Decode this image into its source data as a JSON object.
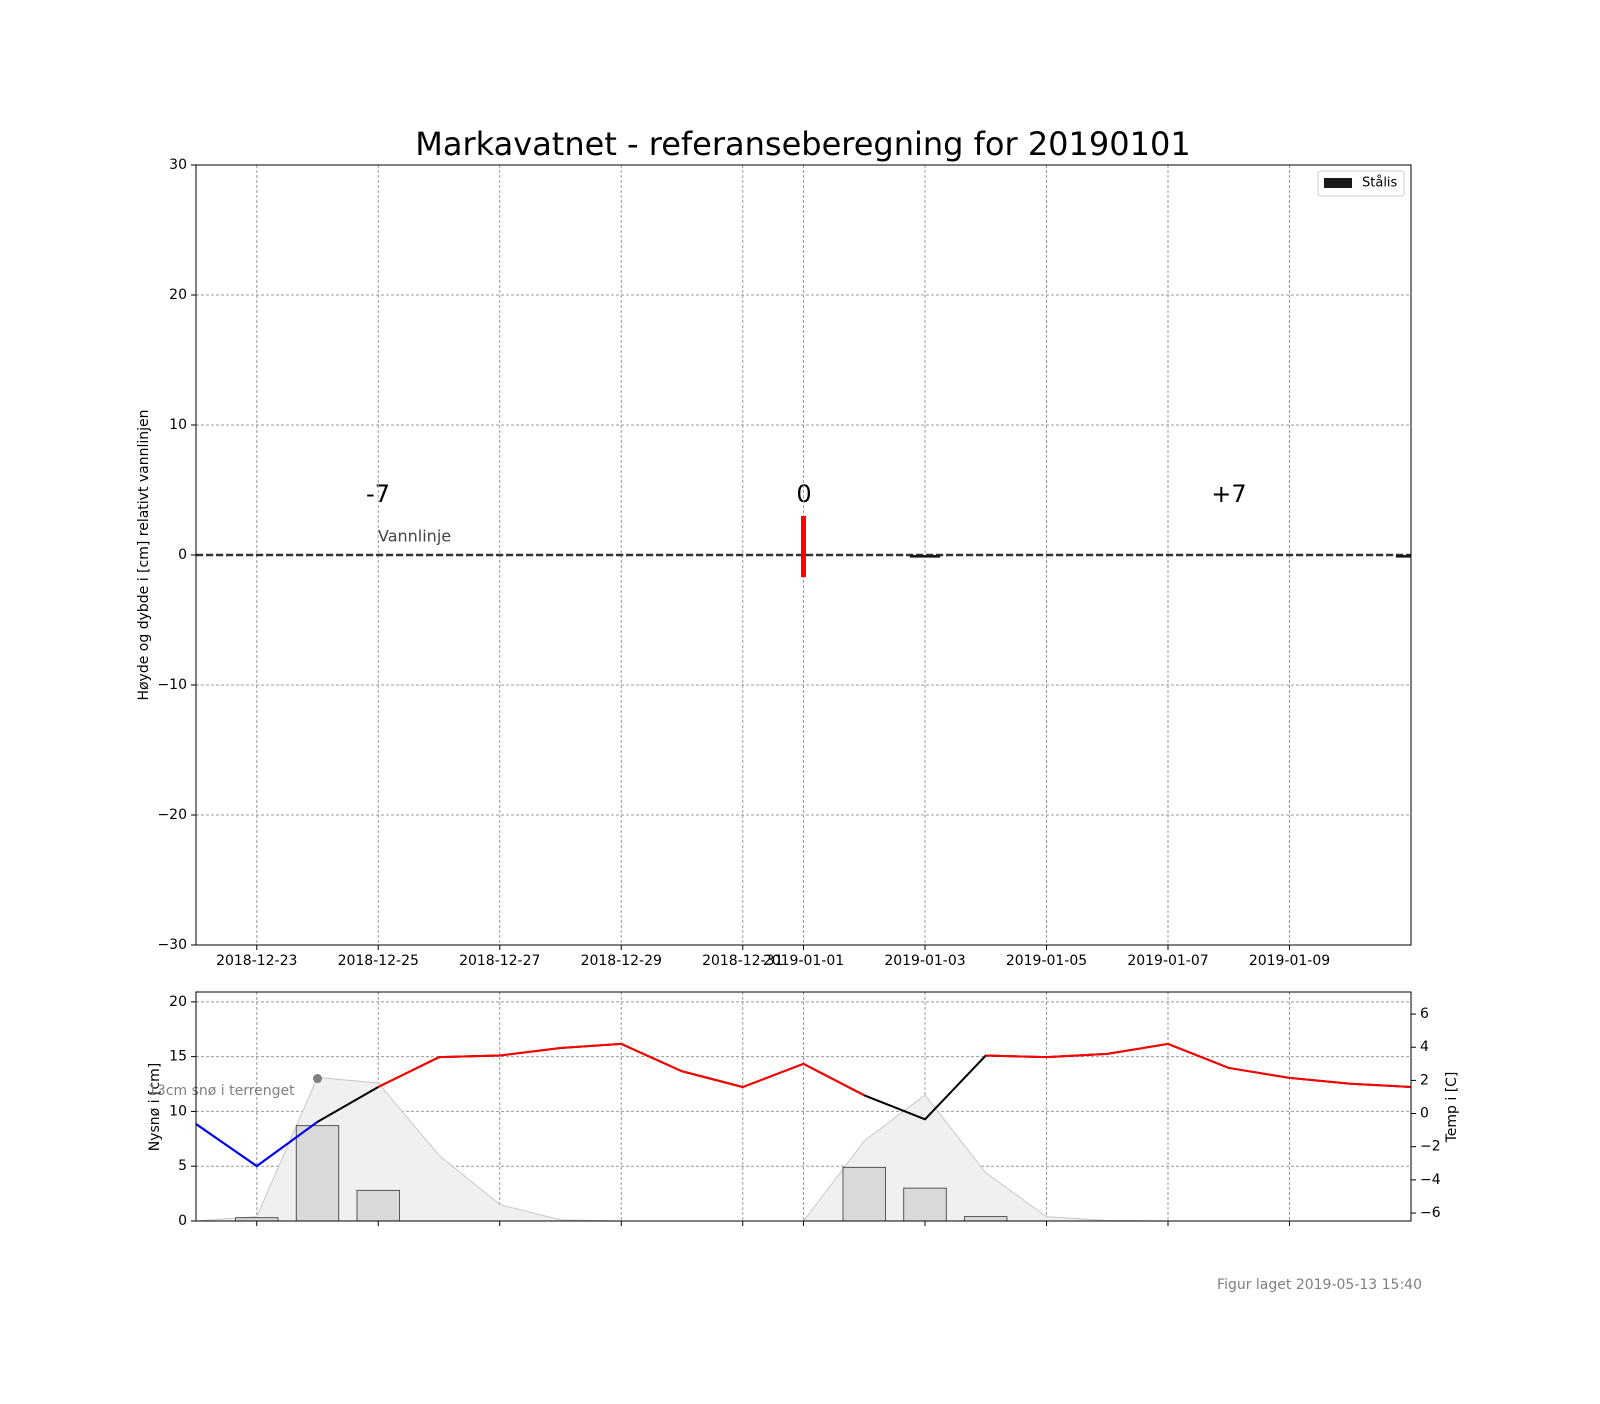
{
  "chart_data": [
    {
      "type": "ice",
      "title": "Markavatnet - referanseberegning for 20190101",
      "ylabel": "Høyde og dybde i [cm] relativt vannlinjen",
      "xlim": [
        "2018-12-22",
        "2019-01-11"
      ],
      "xticks": [
        "2018-12-23",
        "2018-12-25",
        "2018-12-27",
        "2018-12-29",
        "2018-12-31",
        "2019-01-01",
        "2019-01-03",
        "2019-01-05",
        "2019-01-07",
        "2019-01-09"
      ],
      "ylim": [
        -30,
        30
      ],
      "yticks": [
        {
          "value": -30,
          "label": "−30"
        },
        {
          "value": -20,
          "label": "−20"
        },
        {
          "value": -10,
          "label": "−10"
        },
        0,
        10,
        20,
        30
      ],
      "grid": true,
      "legend": "upper right",
      "series": [
        {
          "name": "Stålis",
          "color": "#1a1a1a",
          "x": [
            "2019-01-03",
            "2019-01-11"
          ],
          "values": [
            -0.2,
            -0.2
          ]
        }
      ],
      "waterline": {
        "label": "Vannlinje",
        "value": 0
      },
      "marker": {
        "x": "2019-01-01",
        "top": 3,
        "bottom": -1.7,
        "color": "#ff0000"
      },
      "annotations": [
        "-7",
        "0",
        "+7"
      ]
    },
    {
      "type": "weather",
      "ylabel": "Nysnø i [cm]",
      "y2label": "Temp i [C]",
      "xlim": [
        "2018-12-22",
        "2019-01-11"
      ],
      "xticks": [
        "2018-12-23",
        "2018-12-25",
        "2018-12-27",
        "2018-12-29",
        "2018-12-31",
        "2019-01-01",
        "2019-01-03",
        "2019-01-05",
        "2019-01-07",
        "2019-01-09"
      ],
      "ylim": [
        0,
        20.9
      ],
      "yticks": [
        0,
        5,
        10,
        15,
        20
      ],
      "y2lim": [
        -6.48,
        7.33
      ],
      "y2ticks": [
        {
          "value": -6,
          "label": "−6"
        },
        {
          "value": -4,
          "label": "−4"
        },
        {
          "value": -2,
          "label": "−2"
        },
        0,
        2,
        4,
        6
      ],
      "grid": true,
      "x": [
        "2018-12-22",
        "2018-12-23",
        "2018-12-24",
        "2018-12-25",
        "2018-12-26",
        "2018-12-27",
        "2018-12-28",
        "2018-12-29",
        "2018-12-30",
        "2018-12-31",
        "2019-01-01",
        "2019-01-02",
        "2019-01-03",
        "2019-01-04",
        "2019-01-05",
        "2019-01-06",
        "2019-01-07",
        "2019-01-08",
        "2019-01-09",
        "2019-01-10",
        "2019-01-11"
      ],
      "snow": [
        0,
        0.4,
        13.1,
        12.6,
        6.0,
        1.5,
        0.1,
        0,
        0,
        0,
        0,
        7.3,
        11.5,
        4.4,
        0.4,
        0.05,
        0,
        0,
        0,
        0,
        0
      ],
      "newsnow": {
        "x": [
          "2018-12-23",
          "2018-12-24",
          "2018-12-25",
          "2019-01-02",
          "2019-01-03",
          "2019-01-04"
        ],
        "values": [
          0.3,
          8.7,
          2.8,
          4.9,
          3.0,
          0.4
        ]
      },
      "series": [
        {
          "color": "#000000",
          "axis": "y2",
          "values": [
            -0.63,
            -3.17,
            -0.5,
            1.6,
            3.4,
            3.5,
            3.95,
            4.2,
            2.55,
            1.6,
            3.0,
            1.1,
            -0.35,
            3.5,
            3.4,
            3.6,
            4.2,
            2.75,
            2.15,
            1.8,
            1.6
          ]
        },
        {
          "color": "#ff0000",
          "axis": "y2",
          "values": [
            null,
            null,
            null,
            1.6,
            3.4,
            3.5,
            3.95,
            4.2,
            2.55,
            1.6,
            3.0,
            1.1,
            null,
            3.5,
            3.4,
            3.6,
            4.2,
            2.75,
            2.15,
            1.8,
            1.6
          ]
        },
        {
          "color": "#0000ff",
          "axis": "y2",
          "values": [
            -0.63,
            -3.17,
            -0.5,
            null,
            null,
            null,
            null,
            null,
            null,
            null,
            null,
            null,
            null,
            null,
            null,
            null,
            null,
            null,
            null,
            null,
            null
          ]
        }
      ],
      "snow_note": {
        "x": "2018-12-24",
        "value": 13,
        "text": "13cm snø i terrenget"
      }
    },
    {
      "type": "footer",
      "text": "Figur laget 2019-05-13 15:40"
    }
  ]
}
